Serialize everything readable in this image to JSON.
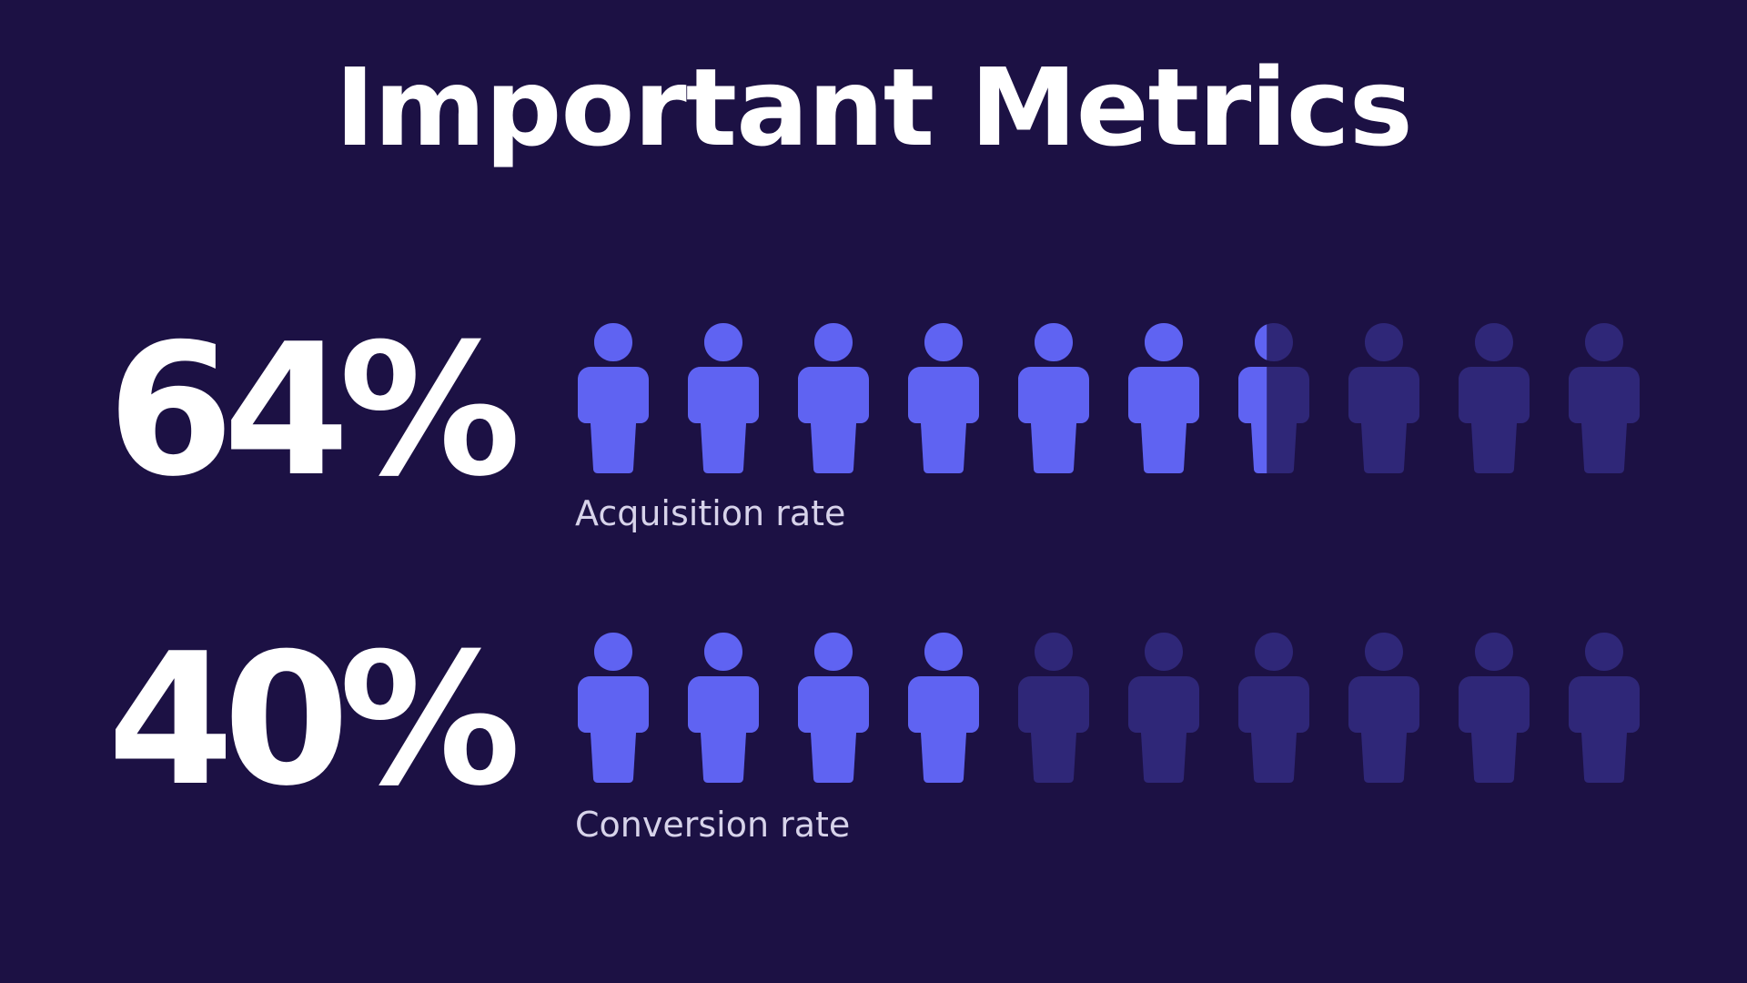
{
  "title": "Important Metrics",
  "colors": {
    "background": "#1c1144",
    "filled": "#5f63f2",
    "empty": "#2f2778",
    "text": "#ffffff",
    "label": "#d7d3ea"
  },
  "chart_data": [
    {
      "type": "pictograph",
      "icon": "person-icon",
      "icon_count": 10,
      "value_text": "64%",
      "value": 64,
      "label": "Acquisition rate"
    },
    {
      "type": "pictograph",
      "icon": "person-icon",
      "icon_count": 10,
      "value_text": "40%",
      "value": 40,
      "label": "Conversion rate"
    }
  ]
}
